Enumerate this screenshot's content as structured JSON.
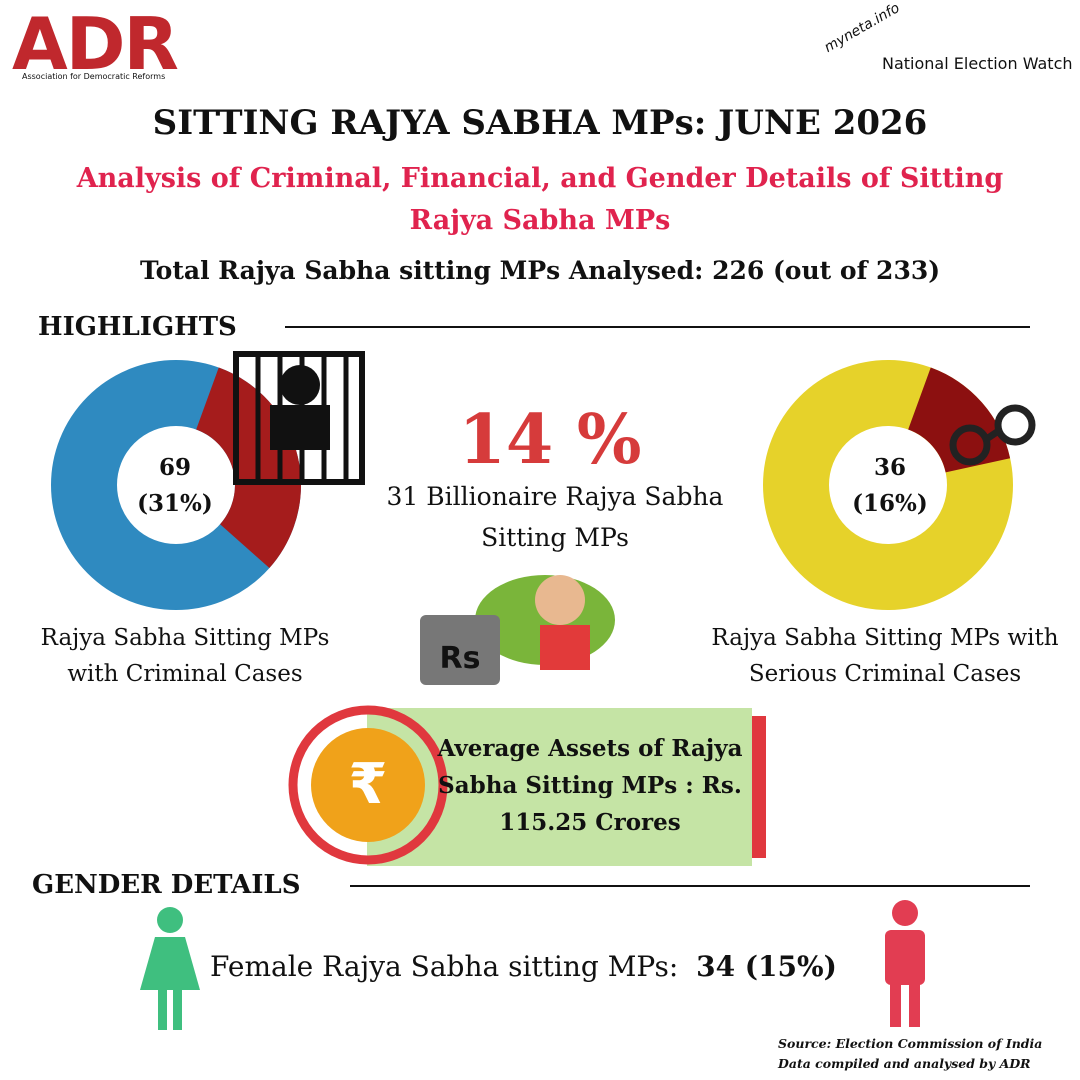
{
  "header": {
    "logo_left": "ADR",
    "logo_left_sub": "Association for Democratic Reforms",
    "logo_right_top": "myneta.info",
    "logo_right": "National Election Watch"
  },
  "title": "SITTING RAJYA SABHA MPs: JUNE 2026",
  "subtitle": "Analysis of Criminal, Financial, and Gender Details of Sitting Rajya Sabha MPs",
  "total": "Total Rajya Sabha sitting MPs Analysed: 226 (out of 233)",
  "highlights": {
    "heading": "HIGHLIGHTS",
    "criminal": {
      "count": "69",
      "percent": 31,
      "percent_label": "(31%)",
      "caption": "Rajya Sabha Sitting MPs with Criminal Cases",
      "color": "#a51c1c",
      "rest_color": "#2f8ac0"
    },
    "billionaire": {
      "percent": "14 %",
      "caption": "31 Billionaire Rajya Sabha Sitting MPs",
      "icon_text": "Rs"
    },
    "serious": {
      "count": "36",
      "percent": 16,
      "percent_label": "(16%)",
      "caption": "Rajya Sabha Sitting MPs with Serious Criminal Cases",
      "color": "#8c1010",
      "rest_color": "#e6d22a"
    },
    "assets": {
      "icon_text": "₹",
      "text": "Average Assets of Rajya Sabha Sitting MPs : Rs. 115.25 Crores"
    }
  },
  "gender": {
    "heading": "GENDER DETAILS",
    "label": "Female Rajya Sabha sitting MPs:",
    "value": "34 (15%)"
  },
  "source": [
    "Source: Election Commission of India",
    "Data compiled and analysed by ADR"
  ]
}
